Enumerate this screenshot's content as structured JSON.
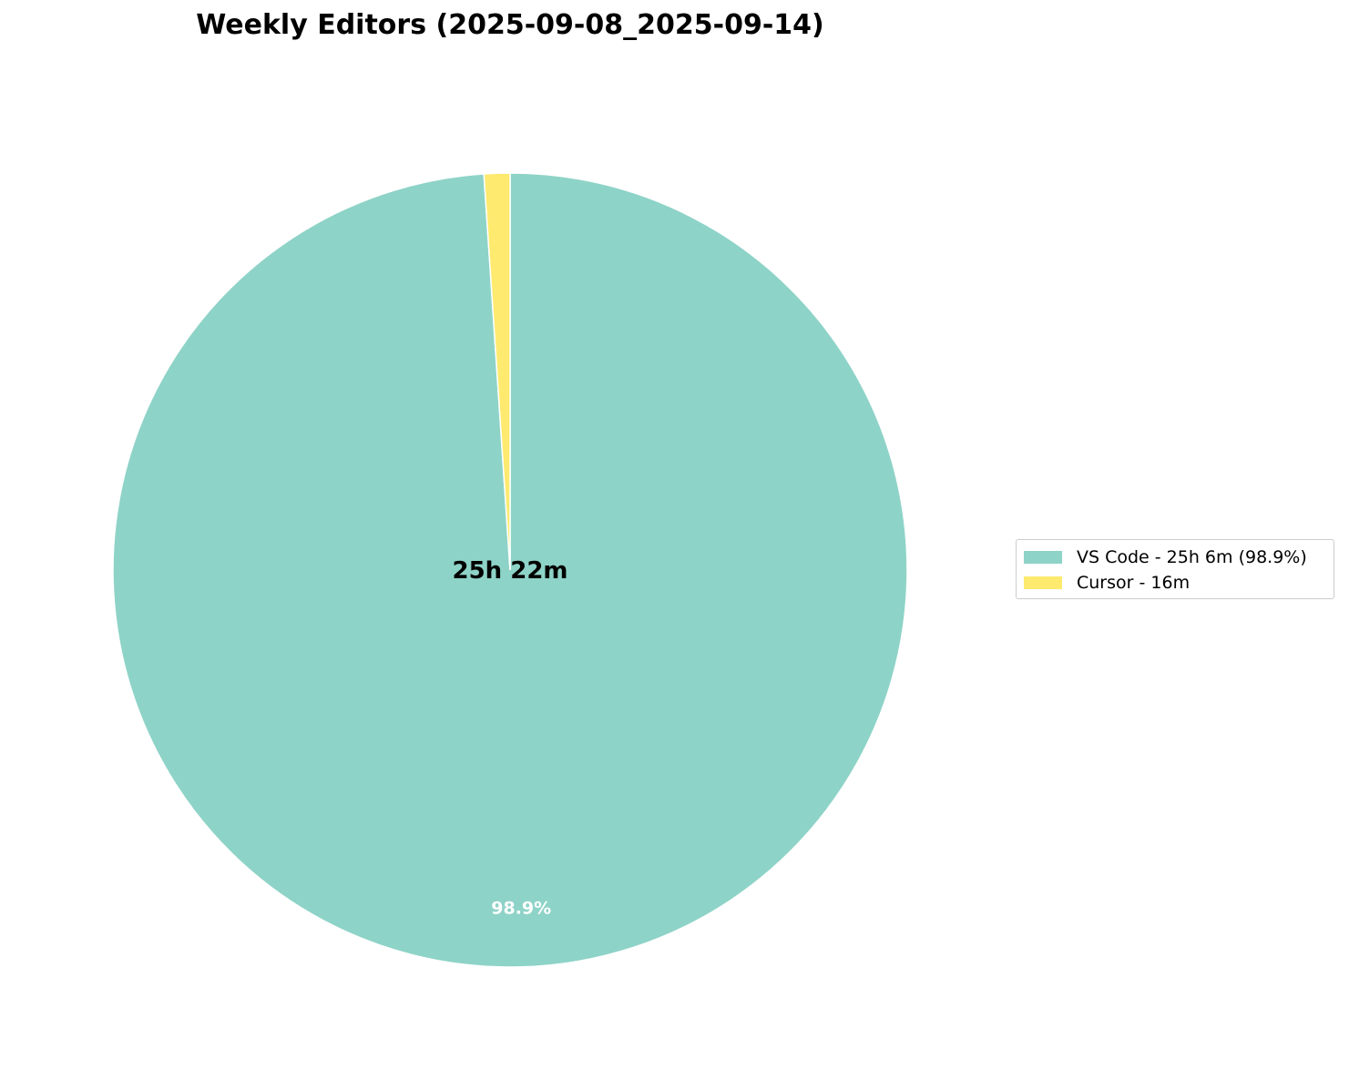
{
  "chart_data": {
    "type": "pie",
    "title": "Weekly Editors (2025-09-08_2025-09-14)",
    "center_label": "25h 22m",
    "slices": [
      {
        "label": "VS Code",
        "value_minutes": 1506,
        "pct_label": "98.9%",
        "color": "#8ed3c7",
        "legend": "VS Code - 25h 6m (98.9%)"
      },
      {
        "label": "Cursor",
        "value_minutes": 16,
        "pct_label": "",
        "color": "#fdea6f",
        "legend": "Cursor - 16m"
      }
    ],
    "start_angle_deg": 90,
    "direction": "clockwise",
    "legend_placement": "center-right"
  }
}
